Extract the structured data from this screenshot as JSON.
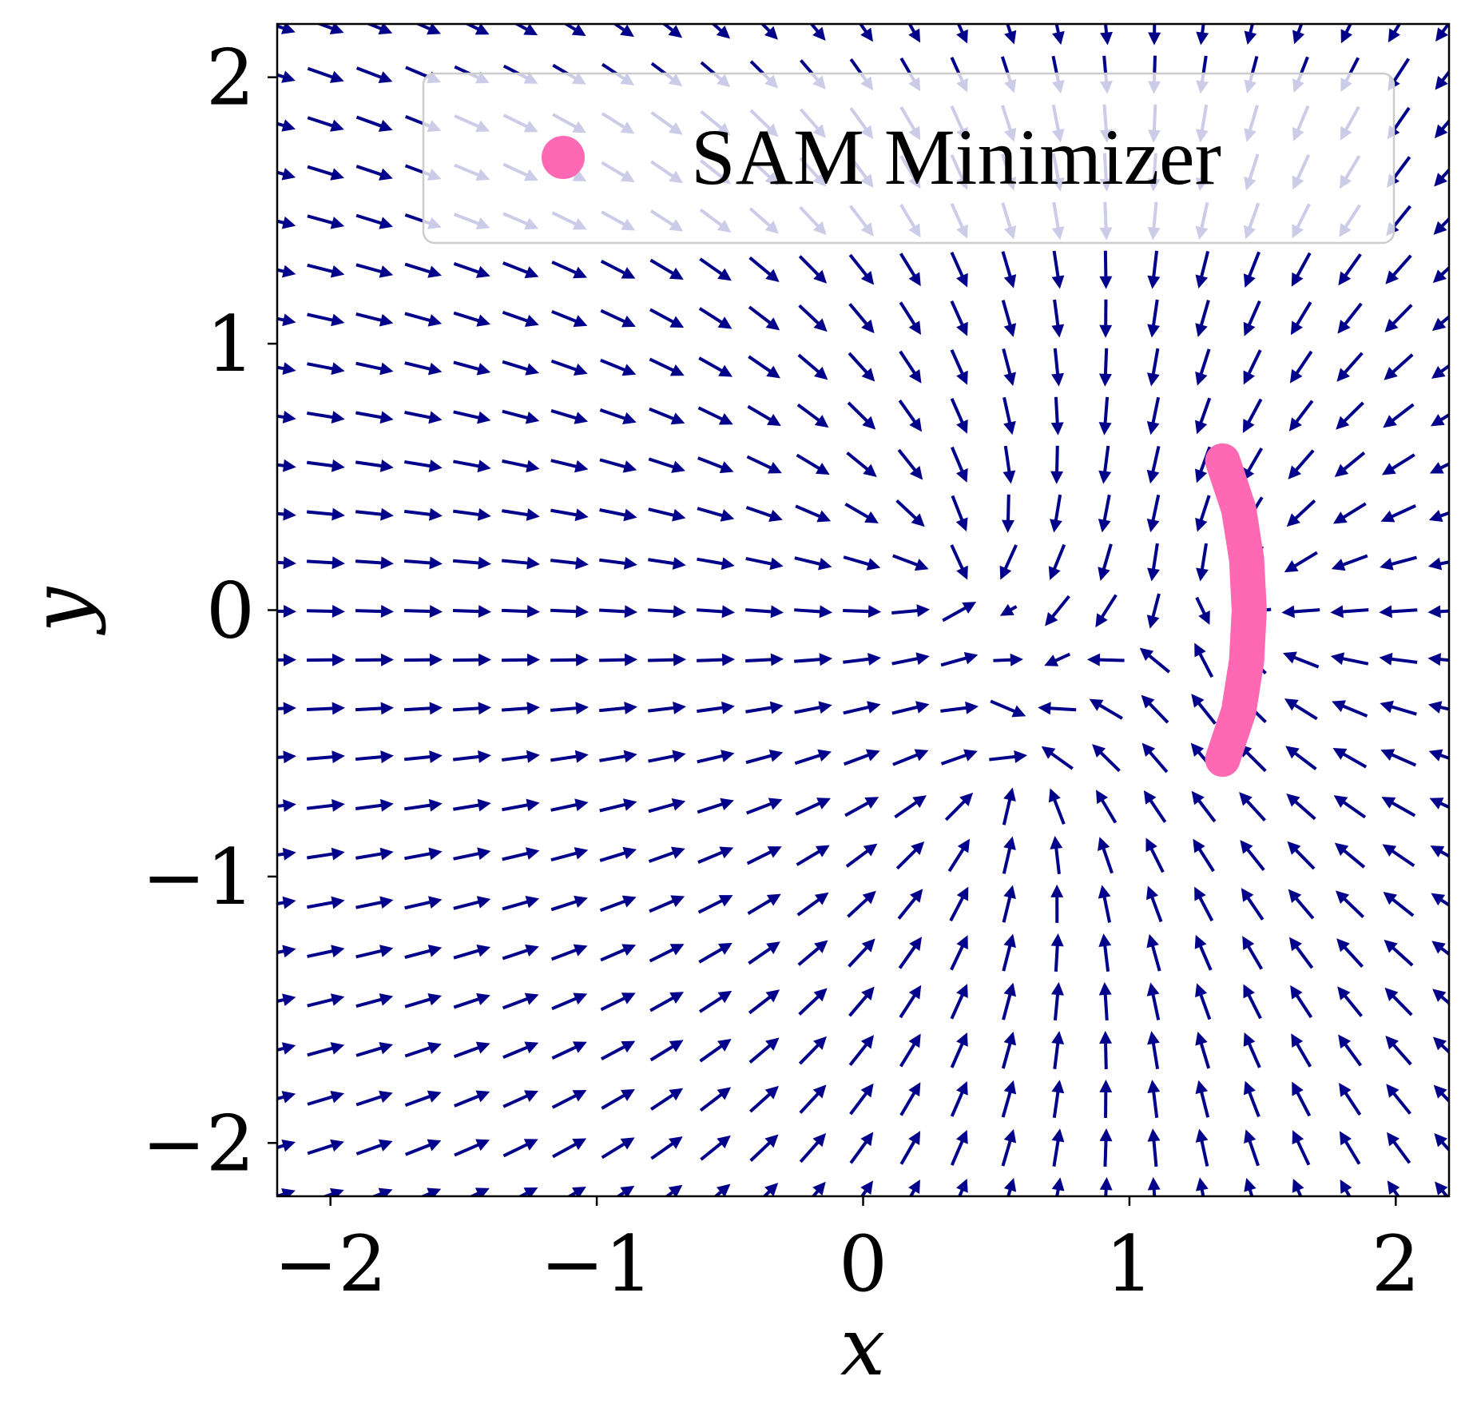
{
  "chart_data": {
    "type": "quiver",
    "xlabel": "x",
    "ylabel": "y",
    "xlim": [
      -2.2,
      2.2
    ],
    "ylim": [
      -2.2,
      2.2
    ],
    "xticks": [
      -2,
      -1,
      0,
      1,
      2
    ],
    "yticks": [
      -2,
      -1,
      0,
      1,
      2
    ],
    "xtick_labels": [
      "−2",
      "−1",
      "0",
      "1",
      "2"
    ],
    "ytick_labels": [
      "−2",
      "−1",
      "0",
      "1",
      "2"
    ],
    "grid": false,
    "vector_field": {
      "color": "#00008B",
      "x_range": [
        -2.2,
        2.2
      ],
      "y_range": [
        -2.2,
        2.2
      ],
      "spacing": 0.183,
      "field_params": {
        "upper_attractor": [
          0.35,
          0.15
        ],
        "lower_attractor": [
          0.55,
          -0.6
        ],
        "right_attractor": [
          1.45,
          0.0
        ]
      }
    },
    "series": [
      {
        "name": "SAM Minimizer",
        "type": "curve",
        "color": "#FF69B4",
        "points": [
          [
            1.35,
            -0.56
          ],
          [
            1.41,
            -0.38
          ],
          [
            1.44,
            -0.19
          ],
          [
            1.45,
            0.0
          ],
          [
            1.44,
            0.19
          ],
          [
            1.41,
            0.38
          ],
          [
            1.35,
            0.56
          ]
        ]
      }
    ],
    "legend": {
      "position": "top-right",
      "entries": [
        {
          "label": "SAM Minimizer",
          "color": "#FF69B4",
          "marker": "circle"
        }
      ]
    }
  }
}
